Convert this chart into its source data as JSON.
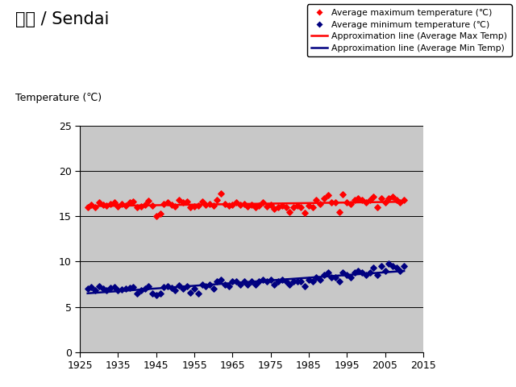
{
  "title_jp": "仙台 / Sendai",
  "ylabel": "Temperature (℃)",
  "xlim": [
    1925,
    2015
  ],
  "ylim": [
    0,
    25
  ],
  "yticks": [
    0,
    5,
    10,
    15,
    20,
    25
  ],
  "xticks": [
    1925,
    1935,
    1945,
    1955,
    1965,
    1975,
    1985,
    1995,
    2005,
    2015
  ],
  "bg_color": "#c8c8c8",
  "legend_labels": [
    "Average maximum temperature (℃)",
    "Average minimum temperature (℃)",
    "Approximation line (Average Max Temp)",
    "Approximation line (Average Min Temp)"
  ],
  "max_temp": [
    [
      1927,
      16.0
    ],
    [
      1928,
      16.3
    ],
    [
      1929,
      16.0
    ],
    [
      1930,
      16.5
    ],
    [
      1931,
      16.3
    ],
    [
      1932,
      16.2
    ],
    [
      1933,
      16.4
    ],
    [
      1934,
      16.5
    ],
    [
      1935,
      16.1
    ],
    [
      1936,
      16.4
    ],
    [
      1937,
      16.2
    ],
    [
      1938,
      16.5
    ],
    [
      1939,
      16.6
    ],
    [
      1940,
      16.0
    ],
    [
      1941,
      16.1
    ],
    [
      1942,
      16.3
    ],
    [
      1943,
      16.7
    ],
    [
      1944,
      16.2
    ],
    [
      1945,
      15.0
    ],
    [
      1946,
      15.3
    ],
    [
      1947,
      16.4
    ],
    [
      1948,
      16.5
    ],
    [
      1949,
      16.3
    ],
    [
      1950,
      16.1
    ],
    [
      1951,
      16.8
    ],
    [
      1952,
      16.5
    ],
    [
      1953,
      16.6
    ],
    [
      1954,
      16.0
    ],
    [
      1955,
      16.1
    ],
    [
      1956,
      16.2
    ],
    [
      1957,
      16.6
    ],
    [
      1958,
      16.3
    ],
    [
      1959,
      16.4
    ],
    [
      1960,
      16.2
    ],
    [
      1961,
      16.8
    ],
    [
      1962,
      17.5
    ],
    [
      1963,
      16.4
    ],
    [
      1964,
      16.2
    ],
    [
      1965,
      16.3
    ],
    [
      1966,
      16.5
    ],
    [
      1967,
      16.3
    ],
    [
      1968,
      16.4
    ],
    [
      1969,
      16.1
    ],
    [
      1970,
      16.3
    ],
    [
      1971,
      16.0
    ],
    [
      1972,
      16.2
    ],
    [
      1973,
      16.5
    ],
    [
      1974,
      16.1
    ],
    [
      1975,
      16.3
    ],
    [
      1976,
      15.8
    ],
    [
      1977,
      16.0
    ],
    [
      1978,
      16.2
    ],
    [
      1979,
      16.0
    ],
    [
      1980,
      15.5
    ],
    [
      1981,
      16.0
    ],
    [
      1982,
      16.2
    ],
    [
      1983,
      16.0
    ],
    [
      1984,
      15.4
    ],
    [
      1985,
      16.2
    ],
    [
      1986,
      16.0
    ],
    [
      1987,
      16.8
    ],
    [
      1988,
      16.4
    ],
    [
      1989,
      17.0
    ],
    [
      1990,
      17.3
    ],
    [
      1991,
      16.5
    ],
    [
      1992,
      16.5
    ],
    [
      1993,
      15.5
    ],
    [
      1994,
      17.4
    ],
    [
      1995,
      16.5
    ],
    [
      1996,
      16.4
    ],
    [
      1997,
      16.8
    ],
    [
      1998,
      17.0
    ],
    [
      1999,
      16.8
    ],
    [
      2000,
      16.5
    ],
    [
      2001,
      16.8
    ],
    [
      2002,
      17.2
    ],
    [
      2003,
      16.0
    ],
    [
      2004,
      17.0
    ],
    [
      2005,
      16.5
    ],
    [
      2006,
      17.0
    ],
    [
      2007,
      17.2
    ],
    [
      2008,
      16.8
    ],
    [
      2009,
      16.5
    ],
    [
      2010,
      16.8
    ]
  ],
  "min_temp": [
    [
      1927,
      7.0
    ],
    [
      1928,
      7.2
    ],
    [
      1929,
      6.8
    ],
    [
      1930,
      7.3
    ],
    [
      1931,
      7.0
    ],
    [
      1932,
      6.8
    ],
    [
      1933,
      7.1
    ],
    [
      1934,
      7.2
    ],
    [
      1935,
      6.8
    ],
    [
      1936,
      6.9
    ],
    [
      1937,
      7.0
    ],
    [
      1938,
      7.1
    ],
    [
      1939,
      7.2
    ],
    [
      1940,
      6.5
    ],
    [
      1941,
      6.8
    ],
    [
      1942,
      7.0
    ],
    [
      1943,
      7.3
    ],
    [
      1944,
      6.5
    ],
    [
      1945,
      6.3
    ],
    [
      1946,
      6.5
    ],
    [
      1947,
      7.2
    ],
    [
      1948,
      7.3
    ],
    [
      1949,
      7.1
    ],
    [
      1950,
      6.8
    ],
    [
      1951,
      7.4
    ],
    [
      1952,
      7.0
    ],
    [
      1953,
      7.3
    ],
    [
      1954,
      6.6
    ],
    [
      1955,
      7.0
    ],
    [
      1956,
      6.5
    ],
    [
      1957,
      7.5
    ],
    [
      1958,
      7.3
    ],
    [
      1959,
      7.5
    ],
    [
      1960,
      7.0
    ],
    [
      1961,
      7.8
    ],
    [
      1962,
      8.0
    ],
    [
      1963,
      7.5
    ],
    [
      1964,
      7.3
    ],
    [
      1965,
      7.8
    ],
    [
      1966,
      7.8
    ],
    [
      1967,
      7.5
    ],
    [
      1968,
      7.8
    ],
    [
      1969,
      7.5
    ],
    [
      1970,
      7.8
    ],
    [
      1971,
      7.5
    ],
    [
      1972,
      7.8
    ],
    [
      1973,
      8.0
    ],
    [
      1974,
      7.8
    ],
    [
      1975,
      8.0
    ],
    [
      1976,
      7.5
    ],
    [
      1977,
      7.8
    ],
    [
      1978,
      8.0
    ],
    [
      1979,
      7.8
    ],
    [
      1980,
      7.5
    ],
    [
      1981,
      7.8
    ],
    [
      1982,
      7.8
    ],
    [
      1983,
      7.8
    ],
    [
      1984,
      7.3
    ],
    [
      1985,
      8.0
    ],
    [
      1986,
      7.8
    ],
    [
      1987,
      8.3
    ],
    [
      1988,
      8.0
    ],
    [
      1989,
      8.5
    ],
    [
      1990,
      8.8
    ],
    [
      1991,
      8.3
    ],
    [
      1992,
      8.3
    ],
    [
      1993,
      7.8
    ],
    [
      1994,
      8.8
    ],
    [
      1995,
      8.5
    ],
    [
      1996,
      8.3
    ],
    [
      1997,
      8.8
    ],
    [
      1998,
      9.0
    ],
    [
      1999,
      8.8
    ],
    [
      2000,
      8.5
    ],
    [
      2001,
      8.8
    ],
    [
      2002,
      9.3
    ],
    [
      2003,
      8.5
    ],
    [
      2004,
      9.5
    ],
    [
      2005,
      9.0
    ],
    [
      2006,
      9.8
    ],
    [
      2007,
      9.5
    ],
    [
      2008,
      9.3
    ],
    [
      2009,
      9.0
    ],
    [
      2010,
      9.5
    ]
  ]
}
